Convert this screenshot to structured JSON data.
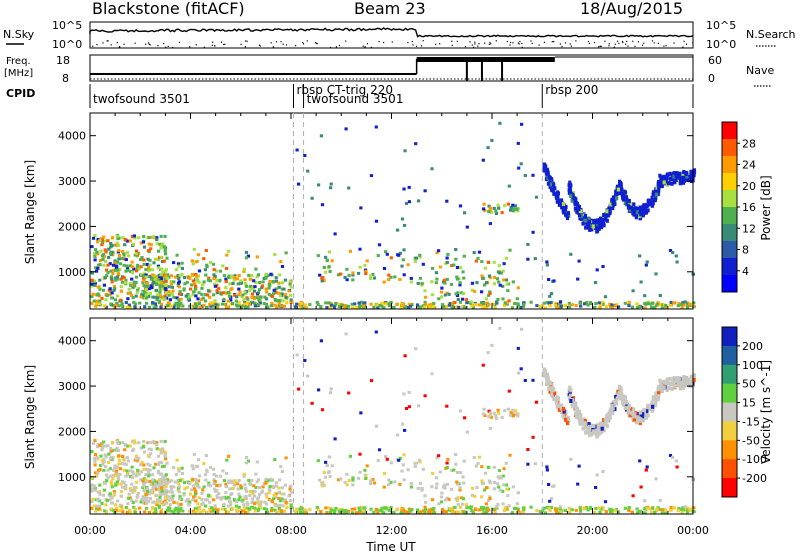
{
  "header": {
    "radar": "Blackstone (fitACF)",
    "beam": "Beam 23",
    "date": "18/Aug/2015"
  },
  "summary": {
    "nsky_label": "N.Sky",
    "nsky_ticks": [
      "10^5",
      "10^0"
    ],
    "nsearch_label": "N.Search",
    "nsearch_ticks": [
      "10^5",
      "10^0"
    ],
    "freq_label_line1": "Freq.",
    "freq_label_line2": "[MHz]",
    "freq_ticks": [
      "18",
      "8"
    ],
    "nave_label": "Nave",
    "nave_ticks": [
      "60",
      "0"
    ],
    "cpid_label": "CPID",
    "cpid_segments": [
      {
        "label": "twofsound 3501",
        "start_hour": 0.0
      },
      {
        "label": "rbsp CT-trig 220",
        "start_hour": 8.1
      },
      {
        "label": "twofsound 3501",
        "start_hour": 8.5
      },
      {
        "label": "rbsp 200",
        "start_hour": 18.0
      }
    ],
    "freq_high_from_hour": 13.0,
    "nave_bars_hours": [
      15.0,
      15.6,
      16.4
    ]
  },
  "chart_data": [
    {
      "type": "heatmap",
      "title": "",
      "parameter": "Power",
      "colorbar_label": "Power [dB]",
      "colorbar_ticks": [
        "28",
        "24",
        "20",
        "16",
        "12",
        "8",
        "4"
      ],
      "colorbar_colors": [
        "#ff0000",
        "#ff5a00",
        "#ff9a00",
        "#ffd000",
        "#a8e040",
        "#50b050",
        "#3a8a78",
        "#2a5aa8",
        "#1020d0",
        "#0000ff"
      ],
      "xlabel": "",
      "ylabel": "Slant Range [km]",
      "xlim_hours": [
        0,
        24
      ],
      "ylim_km": [
        180,
        4500
      ],
      "y_ticks": [
        "4000",
        "3000",
        "2000",
        "1000"
      ],
      "scatter_regions": [
        {
          "hours": [
            0.0,
            3.0
          ],
          "km": [
            300,
            1800
          ],
          "levels": "mixed"
        },
        {
          "hours": [
            2.0,
            8.0
          ],
          "km": [
            300,
            900
          ],
          "levels": "mixed"
        },
        {
          "hours": [
            0.0,
            24.0
          ],
          "km": [
            180,
            350
          ],
          "levels": "low"
        },
        {
          "hours": [
            18.0,
            24.0
          ],
          "km": [
            2000,
            3500
          ],
          "levels": "low"
        }
      ]
    },
    {
      "type": "heatmap",
      "title": "",
      "parameter": "Velocity",
      "colorbar_label": "Velocity [m s^-1]",
      "colorbar_ticks": [
        "200",
        "100",
        "50",
        "15",
        "-15",
        "-50",
        "-100",
        "-200"
      ],
      "colorbar_colors": [
        "#1020c0",
        "#2060a0",
        "#30a070",
        "#60d040",
        "#c8c8c0",
        "#f0d040",
        "#ff9000",
        "#ff5000",
        "#ff0000"
      ],
      "xlabel": "Time UT",
      "ylabel": "Slant Range [km]",
      "xlim_hours": [
        0,
        24
      ],
      "ylim_km": [
        180,
        4500
      ],
      "x_ticks": [
        "00:00",
        "04:00",
        "08:00",
        "12:00",
        "16:00",
        "20:00",
        "00:00"
      ],
      "y_ticks": [
        "4000",
        "3000",
        "2000",
        "1000"
      ]
    }
  ]
}
